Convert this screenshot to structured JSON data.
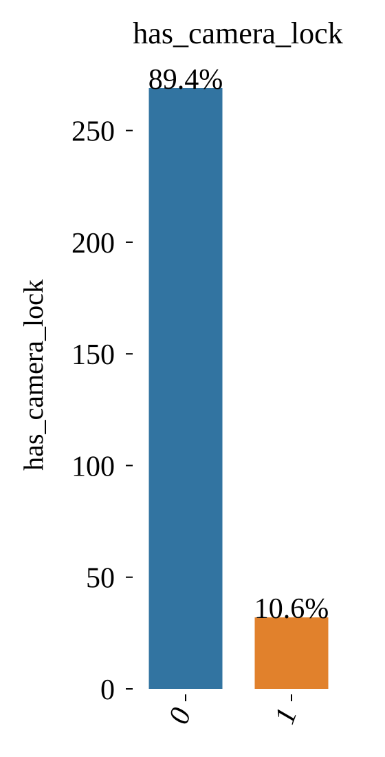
{
  "chart_data": {
    "type": "bar",
    "title": "has_camera_lock",
    "ylabel": "has_camera_lock",
    "xlabel": "",
    "categories": [
      "0",
      "1"
    ],
    "values": [
      269,
      32
    ],
    "bar_labels": [
      "89.4%",
      "10.6%"
    ],
    "colors": [
      "#3274a1",
      "#e1812c"
    ],
    "yticks": [
      0,
      50,
      100,
      150,
      200,
      250
    ],
    "ytick_labels": [
      "0",
      "50",
      "100",
      "150",
      "200",
      "250"
    ],
    "ylim": [
      0,
      269
    ],
    "grid": false,
    "legend": "none",
    "xtick_rotation_deg": 70
  }
}
